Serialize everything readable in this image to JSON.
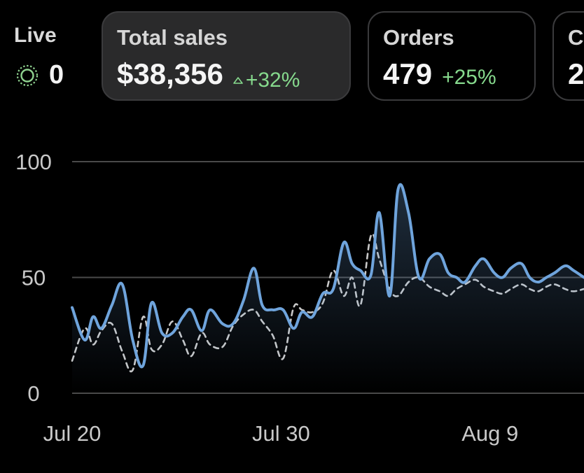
{
  "live": {
    "label": "Live",
    "count": "0"
  },
  "kpis": [
    {
      "label": "Total sales",
      "value": "$38,356",
      "delta": "+32%",
      "delta_icon": "up-triangle-icon",
      "active": true
    },
    {
      "label": "Orders",
      "value": "479",
      "delta": "+25%",
      "active": false
    },
    {
      "label": "C",
      "value": "2",
      "delta": "",
      "active": false
    }
  ],
  "colors": {
    "background": "#000000",
    "primary_line": "#6fa4dc",
    "comparison_line": "#c8c8c8",
    "positive_delta": "#86d98d",
    "live_indicator": "#8fd18f",
    "gridline": "#4a4a4a"
  },
  "chart_data": {
    "type": "line",
    "title": "",
    "xlabel": "",
    "ylabel": "",
    "ylim": [
      0,
      100
    ],
    "y_ticks": [
      "0",
      "50",
      "100"
    ],
    "x_ticks": [
      {
        "day": 0,
        "label": "Jul 20"
      },
      {
        "day": 10,
        "label": "Jul 30"
      },
      {
        "day": 20,
        "label": "Aug 9"
      }
    ],
    "x_range_days": [
      0,
      24.5
    ],
    "grid": true,
    "series": [
      {
        "style": "solid",
        "color": "#6fa4dc",
        "x": [
          0,
          0.6,
          1.0,
          1.4,
          1.9,
          2.4,
          2.9,
          3.4,
          3.8,
          4.3,
          4.8,
          5.3,
          5.7,
          6.2,
          6.6,
          7.2,
          7.7,
          8.2,
          8.7,
          9.1,
          9.6,
          10.1,
          10.6,
          11.0,
          11.5,
          12.0,
          12.5,
          13.0,
          13.4,
          13.8,
          14.3,
          14.7,
          15.2,
          15.6,
          16.1,
          16.6,
          17.1,
          17.6,
          18.0,
          18.4,
          18.8,
          19.3,
          19.7,
          20.2,
          20.6,
          21.0,
          21.5,
          21.9,
          22.3,
          22.7,
          23.1,
          23.6,
          24.0,
          24.5
        ],
        "y": [
          37,
          23,
          33,
          28,
          38,
          47,
          23,
          12,
          39,
          26,
          26,
          33,
          36,
          27,
          36,
          30,
          30,
          40,
          54,
          38,
          36,
          36,
          28,
          35,
          33,
          43,
          45,
          65,
          56,
          53,
          51,
          78,
          42,
          88,
          78,
          50,
          58,
          60,
          52,
          50,
          48,
          55,
          58,
          52,
          50,
          54,
          56,
          50,
          48,
          50,
          52,
          55,
          53,
          50
        ],
        "x_start": 0,
        "x_step": 0.5
      },
      {
        "style": "dashed",
        "color": "#c8c8c8",
        "x": [
          0,
          0.6,
          1.0,
          1.4,
          1.9,
          2.4,
          2.9,
          3.4,
          3.8,
          4.3,
          4.8,
          5.3,
          5.7,
          6.2,
          6.6,
          7.2,
          7.7,
          8.2,
          8.7,
          9.1,
          9.6,
          10.1,
          10.6,
          11.0,
          11.5,
          12.0,
          12.5,
          13.0,
          13.4,
          13.8,
          14.3,
          14.7,
          15.2,
          15.6,
          16.1,
          16.6,
          17.1,
          17.6,
          18.0,
          18.4,
          18.8,
          19.3,
          19.7,
          20.2,
          20.6,
          21.0,
          21.5,
          21.9,
          22.3,
          22.7,
          23.1,
          23.6,
          24.0,
          24.5
        ],
        "y": [
          14,
          28,
          21,
          27,
          30,
          18,
          10,
          33,
          19,
          21,
          31,
          23,
          16,
          26,
          21,
          20,
          29,
          34,
          36,
          31,
          25,
          15,
          37,
          36,
          35,
          39,
          53,
          42,
          50,
          38,
          68,
          58,
          45,
          42,
          48,
          50,
          46,
          44,
          42,
          45,
          47,
          49,
          46,
          44,
          43,
          45,
          47,
          45,
          44,
          46,
          47,
          45,
          44,
          45
        ]
      }
    ]
  }
}
